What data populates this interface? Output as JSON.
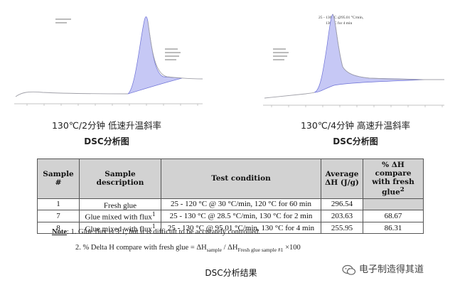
{
  "left_chart": {
    "caption": "130℃/2分钟  低速升温斜率",
    "subcaption": "DSC分析图"
  },
  "right_chart": {
    "caption": "130℃/4分钟  高速升温斜率",
    "subcaption": "DSC分析图",
    "legend_line1": "25 - 130 °C @95.01 °C/min,",
    "legend_line2": "130 °C for 4 min"
  },
  "table": {
    "headers": {
      "sample": "Sample #",
      "description": "Sample description",
      "condition": "Test condition",
      "avg_line1": "Average",
      "avg_line2": "ΔH (J/g)",
      "cmp_line1": "% ΔH compare",
      "cmp_line2": "with fresh glue",
      "cmp_sup": "2"
    },
    "rows": [
      {
        "sample": "1",
        "description": "Fresh glue",
        "sup": "",
        "condition": "25 - 120 °C @ 30 °C/min, 120 °C for 60 min",
        "avg": "296.54",
        "compare": ""
      },
      {
        "sample": "7",
        "description": "Glue mixed with flux",
        "sup": "1",
        "condition": "25 - 130 °C @ 28.5 °C/min, 130 °C for 2 min",
        "avg": "203.63",
        "compare": "68.67"
      },
      {
        "sample": "8",
        "description": "Glue mixed with flux",
        "sup": "1",
        "condition": "25 - 130 °C @ 95.01 °C/min, 130 °C for 4 min",
        "avg": "255.95",
        "compare": "86.31"
      }
    ]
  },
  "notes": {
    "label": "Note",
    "colon": ":",
    "note1": "1. Glue:flux is 3:1, but it is difficult to be accurately controlled.",
    "note2_prefix": "2. % Delta H compare with fresh glue = ΔH",
    "note2_sub1": "sample",
    "note2_mid": " / ΔH",
    "note2_sub2": "Fresh glue sample #1",
    "note2_suffix": " ×100"
  },
  "result_title": "DSC分析结果",
  "watermark": "电子制造得其道",
  "colors": {
    "curve": "#a0a0a8",
    "peak_fill": "#c6c8f5",
    "peak_stroke": "#6b6fd6",
    "header_bg": "#d2d2d2"
  }
}
